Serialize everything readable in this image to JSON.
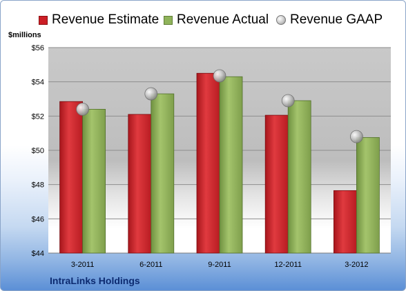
{
  "chart_data": {
    "type": "bar",
    "title": "",
    "ylabel": "$millions",
    "xlabel": "",
    "company": "IntraLinks Holdings",
    "categories": [
      "3-2011",
      "6-2011",
      "9-2011",
      "12-2011",
      "3-2012"
    ],
    "series": [
      {
        "name": "Revenue Estimate",
        "type": "bar",
        "color": "#cc1f26",
        "values": [
          52.85,
          52.1,
          54.5,
          52.05,
          47.65
        ]
      },
      {
        "name": "Revenue Actual",
        "type": "bar",
        "color": "#8fb35a",
        "values": [
          52.4,
          53.3,
          54.3,
          52.9,
          50.75
        ]
      },
      {
        "name": "Revenue GAAP",
        "type": "marker",
        "color": "#b4b4b4",
        "values": [
          52.4,
          53.3,
          54.35,
          52.9,
          50.8
        ]
      }
    ],
    "ylim": [
      44,
      56
    ],
    "yticks": [
      "$44",
      "$46",
      "$48",
      "$50",
      "$52",
      "$54",
      "$56"
    ],
    "grid": true,
    "legend_position": "top"
  }
}
